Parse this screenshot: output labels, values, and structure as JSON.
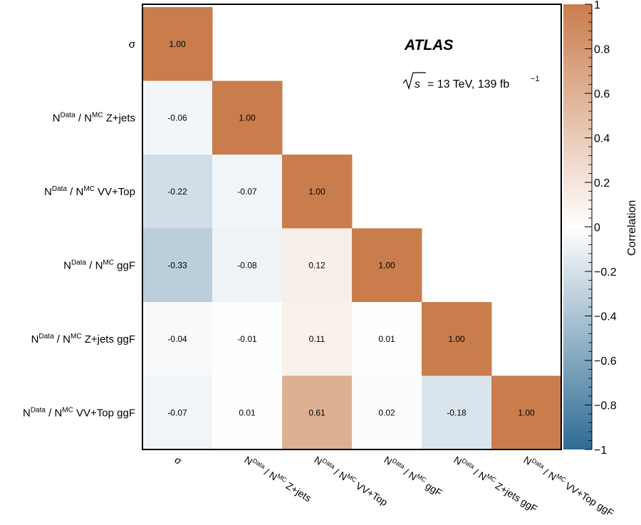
{
  "chart_data": {
    "type": "heatmap",
    "annotation": {
      "experiment": "ATLAS",
      "energy_label_sqrt": "s",
      "energy_label_rest": "= 13 TeV, 139 fb",
      "energy_label_sup": "−1"
    },
    "labels": [
      {
        "main": "σ"
      },
      {
        "pre": "N",
        "sup1": "Data",
        "mid": " / N",
        "sup2": "MC",
        "post": " Z+jets"
      },
      {
        "pre": "N",
        "sup1": "Data",
        "mid": " / N",
        "sup2": "MC",
        "post": " VV+Top"
      },
      {
        "pre": "N",
        "sup1": "Data",
        "mid": " / N",
        "sup2": "MC",
        "post": " ggF"
      },
      {
        "pre": "N",
        "sup1": "Data",
        "mid": " / N",
        "sup2": "MC",
        "post": " Z+jets ggF"
      },
      {
        "pre": "N",
        "sup1": "Data",
        "mid": " / N",
        "sup2": "MC",
        "post": " VV+Top ggF"
      }
    ],
    "matrix": [
      [
        1.0,
        null,
        null,
        null,
        null,
        null
      ],
      [
        -0.06,
        1.0,
        null,
        null,
        null,
        null
      ],
      [
        -0.22,
        -0.07,
        1.0,
        null,
        null,
        null
      ],
      [
        -0.33,
        -0.08,
        0.12,
        1.0,
        null,
        null
      ],
      [
        -0.04,
        -0.01,
        0.11,
        0.01,
        1.0,
        null
      ],
      [
        -0.07,
        0.01,
        0.61,
        0.02,
        -0.18,
        1.0
      ]
    ],
    "colorbar": {
      "label": "Correlation",
      "zlim": [
        -1,
        1
      ],
      "ticks": [
        1,
        0.8,
        0.6,
        0.4,
        0.2,
        0,
        -0.2,
        -0.4,
        -0.6,
        -0.8,
        -1
      ],
      "tick_labels": [
        "1",
        "0.8",
        "0.6",
        "0.4",
        "0.2",
        "0",
        "−0.2",
        "−0.4",
        "−0.6",
        "−0.8",
        "−1"
      ],
      "color_positive": "#c97d4d",
      "color_zero": "#ffffff",
      "color_negative": "#2f6b93"
    }
  }
}
